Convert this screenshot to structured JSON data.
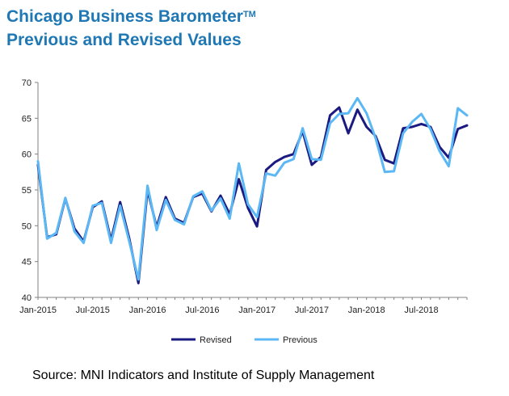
{
  "title": {
    "line1": "Chicago Business Barometer",
    "tm": "TM",
    "line2": "Previous and Revised Values"
  },
  "source": "Source: MNI Indicators and Institute of Supply Management",
  "chart_data": {
    "type": "line",
    "title": "Chicago Business Barometer™ Previous and Revised Values",
    "ylim": [
      40,
      70
    ],
    "yticks": [
      40,
      45,
      50,
      55,
      60,
      65,
      70
    ],
    "x_tick_labels": [
      "Jan-2015",
      "Jul-2015",
      "Jan-2016",
      "Jul-2016",
      "Jan-2017",
      "Jul-2017",
      "Jan-2018",
      "Jul-2018"
    ],
    "x_tick_every": 6,
    "n_points": 48,
    "grid": false,
    "legend_position": "bottom",
    "series": [
      {
        "name": "Revised",
        "color": "#1a1a80",
        "values": [
          58.5,
          48.4,
          48.8,
          53.8,
          49.6,
          47.8,
          52.6,
          53.4,
          48.0,
          53.3,
          48.2,
          42.0,
          55.0,
          49.8,
          54.0,
          51.0,
          50.4,
          54.0,
          54.5,
          52.0,
          54.2,
          51.6,
          56.5,
          52.5,
          49.9,
          57.8,
          58.9,
          59.6,
          60.0,
          63.2,
          58.5,
          59.6,
          65.4,
          66.5,
          62.9,
          66.2,
          63.8,
          62.5,
          59.2,
          58.7,
          63.6,
          63.8,
          64.2,
          63.8,
          61.0,
          59.5,
          63.5,
          64.0
        ]
      },
      {
        "name": "Previous",
        "color": "#5bb8f5",
        "values": [
          59.0,
          48.2,
          49.0,
          53.9,
          49.2,
          47.6,
          52.8,
          53.2,
          47.6,
          52.8,
          47.8,
          42.5,
          55.6,
          49.4,
          53.6,
          50.8,
          50.2,
          54.1,
          54.8,
          52.1,
          53.8,
          51.0,
          58.7,
          53.0,
          51.2,
          57.3,
          57.0,
          58.8,
          59.3,
          63.6,
          59.3,
          59.2,
          64.3,
          65.6,
          65.7,
          67.8,
          65.7,
          62.2,
          57.5,
          57.6,
          62.9,
          64.5,
          65.6,
          63.5,
          60.4,
          58.3,
          66.4,
          65.4
        ]
      }
    ]
  }
}
